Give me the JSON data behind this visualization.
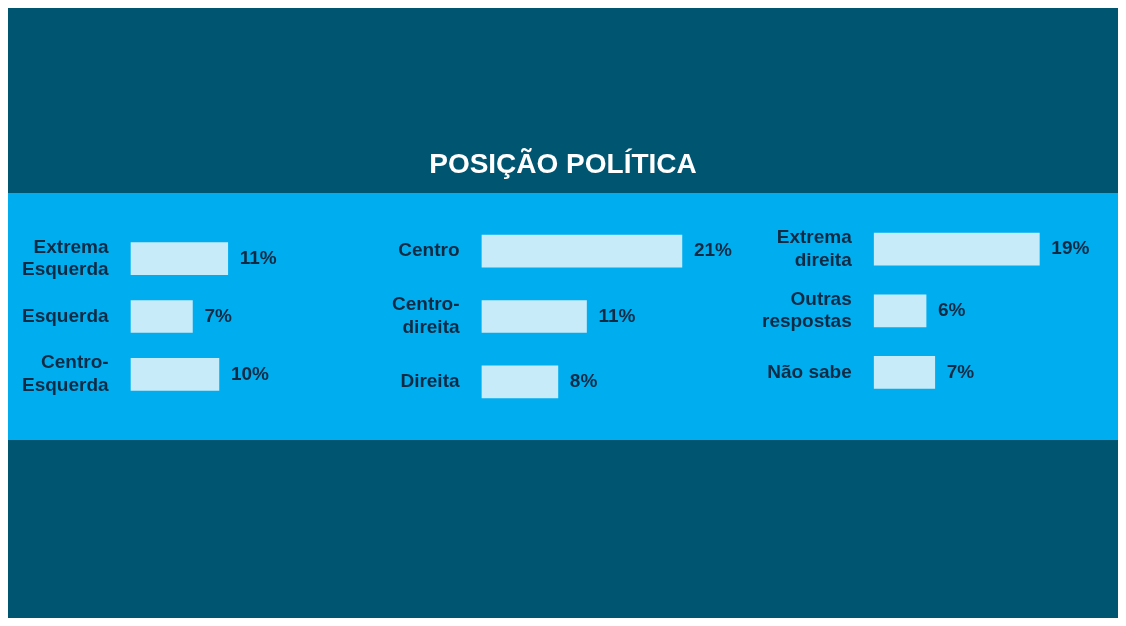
{
  "chart_data": [
    {
      "type": "bar",
      "orientation": "horizontal",
      "categories": [
        "Extrema Esquerda",
        "Esquerda",
        "Centro-Esquerda"
      ],
      "values": [
        11,
        7,
        10
      ],
      "value_labels": [
        "11%",
        "7%",
        "10%"
      ],
      "color": "#c8ebfa"
    },
    {
      "type": "bar",
      "title": "POSIÇÃO POLÍTICA",
      "orientation": "horizontal",
      "categories": [
        "Centro",
        "Centro-direita",
        "Direita"
      ],
      "values": [
        21,
        11,
        8
      ],
      "value_labels": [
        "21%",
        "11%",
        "8%"
      ],
      "color": "#c8ebfa"
    },
    {
      "type": "bar",
      "orientation": "horizontal",
      "categories": [
        "Extrema direita",
        "Outras respostas",
        "Não sabe"
      ],
      "values": [
        19,
        6,
        7
      ],
      "value_labels": [
        "19%",
        "6%",
        "7%"
      ],
      "color": "#c8ebfa"
    }
  ]
}
